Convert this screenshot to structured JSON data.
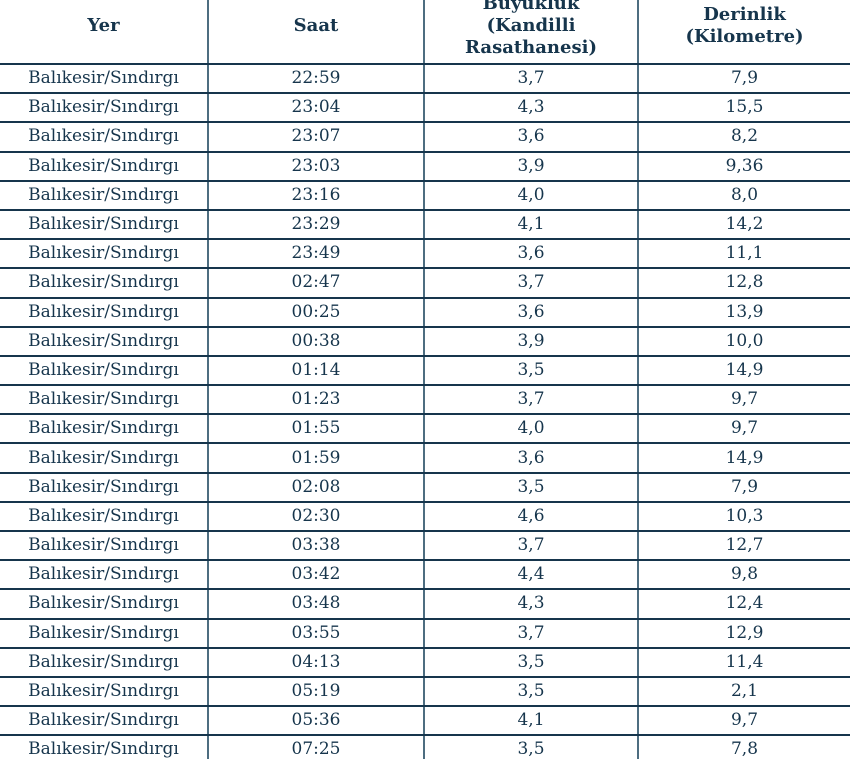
{
  "table": {
    "headers": {
      "yer": "Yer",
      "saat": "Saat",
      "buyukluk": "Büyüklük\n(Kandilli\nRasathanesi)",
      "derinlik": "Derinlik\n(Kilometre)"
    },
    "rows": [
      {
        "yer": "Balıkesir/Sındırgı",
        "saat": "22:59",
        "buyukluk": "3,7",
        "derinlik": "7,9"
      },
      {
        "yer": "Balıkesir/Sındırgı",
        "saat": "23:04",
        "buyukluk": "4,3",
        "derinlik": "15,5"
      },
      {
        "yer": "Balıkesir/Sındırgı",
        "saat": "23:07",
        "buyukluk": "3,6",
        "derinlik": "8,2"
      },
      {
        "yer": "Balıkesir/Sındırgı",
        "saat": "23:03",
        "buyukluk": "3,9",
        "derinlik": "9,36"
      },
      {
        "yer": "Balıkesir/Sındırgı",
        "saat": "23:16",
        "buyukluk": "4,0",
        "derinlik": "8,0"
      },
      {
        "yer": "Balıkesir/Sındırgı",
        "saat": "23:29",
        "buyukluk": "4,1",
        "derinlik": "14,2"
      },
      {
        "yer": "Balıkesir/Sındırgı",
        "saat": "23:49",
        "buyukluk": "3,6",
        "derinlik": "11,1"
      },
      {
        "yer": "Balıkesir/Sındırgı",
        "saat": "02:47",
        "buyukluk": "3,7",
        "derinlik": "12,8"
      },
      {
        "yer": "Balıkesir/Sındırgı",
        "saat": "00:25",
        "buyukluk": "3,6",
        "derinlik": "13,9"
      },
      {
        "yer": "Balıkesir/Sındırgı",
        "saat": "00:38",
        "buyukluk": "3,9",
        "derinlik": "10,0"
      },
      {
        "yer": "Balıkesir/Sındırgı",
        "saat": "01:14",
        "buyukluk": "3,5",
        "derinlik": "14,9"
      },
      {
        "yer": "Balıkesir/Sındırgı",
        "saat": "01:23",
        "buyukluk": "3,7",
        "derinlik": "9,7"
      },
      {
        "yer": "Balıkesir/Sındırgı",
        "saat": "01:55",
        "buyukluk": "4,0",
        "derinlik": "9,7"
      },
      {
        "yer": "Balıkesir/Sındırgı",
        "saat": "01:59",
        "buyukluk": "3,6",
        "derinlik": "14,9"
      },
      {
        "yer": "Balıkesir/Sındırgı",
        "saat": "02:08",
        "buyukluk": "3,5",
        "derinlik": "7,9"
      },
      {
        "yer": "Balıkesir/Sındırgı",
        "saat": "02:30",
        "buyukluk": "4,6",
        "derinlik": "10,3"
      },
      {
        "yer": "Balıkesir/Sındırgı",
        "saat": "03:38",
        "buyukluk": "3,7",
        "derinlik": "12,7"
      },
      {
        "yer": "Balıkesir/Sındırgı",
        "saat": "03:42",
        "buyukluk": "4,4",
        "derinlik": "9,8"
      },
      {
        "yer": "Balıkesir/Sındırgı",
        "saat": "03:48",
        "buyukluk": "4,3",
        "derinlik": "12,4"
      },
      {
        "yer": "Balıkesir/Sındırgı",
        "saat": "03:55",
        "buyukluk": "3,7",
        "derinlik": "12,9"
      },
      {
        "yer": "Balıkesir/Sındırgı",
        "saat": "04:13",
        "buyukluk": "3,5",
        "derinlik": "11,4"
      },
      {
        "yer": "Balıkesir/Sındırgı",
        "saat": "05:19",
        "buyukluk": "3,5",
        "derinlik": "2,1"
      },
      {
        "yer": "Balıkesir/Sındırgı",
        "saat": "05:36",
        "buyukluk": "4,1",
        "derinlik": "9,7"
      },
      {
        "yer": "Balıkesir/Sındırgı",
        "saat": "07:25",
        "buyukluk": "3,5",
        "derinlik": "7,8"
      }
    ]
  },
  "colors": {
    "text": "#16354c",
    "horizontal_border": "#16354c",
    "vertical_border": "#4d6d80",
    "background": "#ffffff"
  }
}
